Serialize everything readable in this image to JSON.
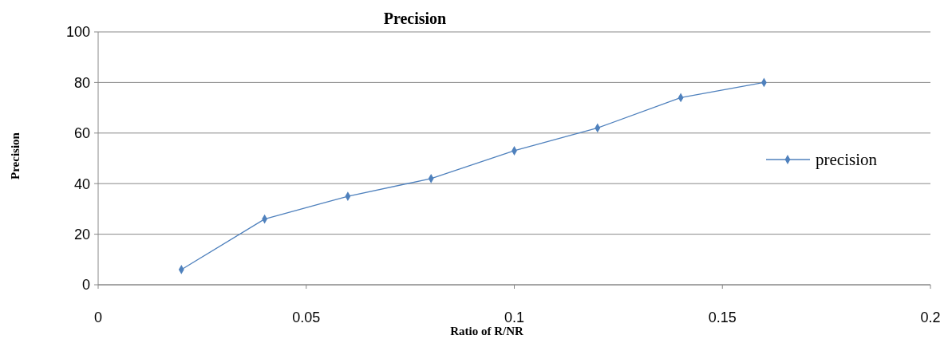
{
  "chart_data": {
    "type": "line",
    "title": "Precision",
    "xlabel": "Ratio of R/NR",
    "ylabel": "Precision",
    "x": [
      0.02,
      0.04,
      0.06,
      0.08,
      0.1,
      0.12,
      0.14,
      0.16
    ],
    "series": [
      {
        "name": "precision",
        "color": "#4f81bd",
        "values": [
          6,
          26,
          35,
          42,
          53,
          62,
          74,
          80
        ]
      }
    ],
    "xlim": [
      0,
      0.2
    ],
    "xticks": [
      0,
      0.05,
      0.1,
      0.15,
      0.2
    ],
    "ylim": [
      0,
      100
    ],
    "yticks": [
      0,
      20,
      40,
      60,
      80,
      100
    ],
    "grid": "y",
    "legend": "right",
    "marker": "diamond",
    "line_style": "solid"
  }
}
